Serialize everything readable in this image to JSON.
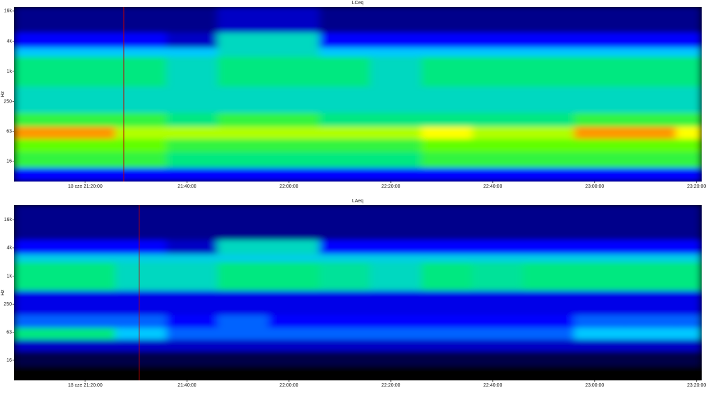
{
  "chart_data": [
    {
      "type": "spectrogram",
      "title": "LCeq",
      "ylabel": "Hz",
      "log_y": true,
      "ylim": [
        6.3,
        19300
      ],
      "yticks": [
        {
          "value": 16000,
          "label": "16k"
        },
        {
          "value": 4000,
          "label": "4k"
        },
        {
          "value": 1000,
          "label": "1k"
        },
        250,
        63,
        16
      ],
      "xlim": [
        1266,
        1401
      ],
      "xticks": [
        {
          "value": 1280,
          "label": "18 cze 21:20:00"
        },
        {
          "value": 1300,
          "label": "21:40:00"
        },
        {
          "value": 1320,
          "label": "22:00:00"
        },
        {
          "value": 1340,
          "label": "22:20:00"
        },
        {
          "value": 1360,
          "label": "22:40:00"
        },
        {
          "value": 1380,
          "label": "23:00:00"
        },
        {
          "value": 1400,
          "label": "23:20:00"
        }
      ],
      "cursor": 1287.6,
      "cursor_color": "#c00000",
      "colorscale": [
        "#000000",
        "#00008b",
        "#0000ff",
        "#00c8ff",
        "#00e880",
        "#60ff00",
        "#ffff00",
        "#ff3000"
      ],
      "times": [
        1266,
        1276,
        1286,
        1296,
        1306,
        1316,
        1326,
        1336,
        1346,
        1356,
        1366,
        1376,
        1386,
        1396
      ],
      "bands": [
        6.3,
        12,
        25,
        45,
        80,
        150,
        500,
        2000,
        3000,
        6000,
        19300
      ],
      "levels": [
        [
          2,
          2,
          2,
          2,
          2,
          2,
          2,
          2,
          2,
          2,
          2,
          2,
          2,
          2
        ],
        [
          4.5,
          4.5,
          4.5,
          4,
          4,
          4,
          4,
          4,
          4.5,
          4.5,
          4.5,
          4.5,
          4.5,
          4.5
        ],
        [
          5,
          5,
          5,
          4.5,
          4.5,
          4.5,
          4.5,
          4.5,
          5,
          5,
          5,
          5,
          5,
          5
        ],
        [
          6.5,
          6.5,
          5.5,
          5.5,
          5.5,
          5.5,
          5.5,
          5.5,
          6,
          5.5,
          5.5,
          6.5,
          6.5,
          6
        ],
        [
          4.5,
          4.5,
          4.5,
          4,
          4.5,
          4.5,
          4,
          4,
          4,
          4,
          4,
          4.5,
          4.5,
          4.5
        ],
        [
          3.5,
          3.5,
          3.5,
          3.5,
          3.5,
          3.5,
          3.5,
          3.5,
          3.5,
          3.5,
          3.5,
          3.5,
          3.5,
          3.5
        ],
        [
          4,
          4,
          4,
          3.5,
          4,
          4,
          4,
          3.5,
          4,
          4,
          4,
          4,
          4,
          4
        ],
        [
          3,
          3,
          3,
          3,
          3.5,
          3.5,
          3,
          3,
          3,
          3,
          3,
          3,
          3,
          3
        ],
        [
          2,
          2,
          2,
          1.5,
          3.5,
          3.5,
          2,
          2,
          2,
          2,
          2,
          2,
          2,
          2
        ],
        [
          1,
          1,
          1,
          1,
          1.5,
          1.5,
          1,
          1,
          1,
          1,
          1,
          1,
          1,
          1
        ]
      ]
    },
    {
      "type": "spectrogram",
      "title": "LAeq",
      "ylabel": "Hz",
      "log_y": true,
      "ylim": [
        5.95,
        32800
      ],
      "yticks": [
        {
          "value": 16000,
          "label": "16k"
        },
        {
          "value": 4000,
          "label": "4k"
        },
        {
          "value": 1000,
          "label": "1k"
        },
        250,
        63,
        16
      ],
      "xlim": [
        1266,
        1401
      ],
      "xticks": [
        {
          "value": 1280,
          "label": "18 cze 21:20:00"
        },
        {
          "value": 1300,
          "label": "21:40:00"
        },
        {
          "value": 1320,
          "label": "22:00:00"
        },
        {
          "value": 1340,
          "label": "22:20:00"
        },
        {
          "value": 1360,
          "label": "22:40:00"
        },
        {
          "value": 1380,
          "label": "23:00:00"
        },
        {
          "value": 1400,
          "label": "23:20:00"
        }
      ],
      "cursor": 1290.6,
      "cursor_color": "#c00000",
      "colorscale": [
        "#000000",
        "#00008b",
        "#0000ff",
        "#00c8ff",
        "#00e880",
        "#60ff00",
        "#ffff00",
        "#ff3000"
      ],
      "times": [
        1266,
        1276,
        1286,
        1296,
        1306,
        1316,
        1326,
        1336,
        1346,
        1356,
        1366,
        1376,
        1386,
        1396
      ],
      "bands": [
        5.95,
        12,
        25,
        45,
        80,
        150,
        500,
        2000,
        3000,
        6000,
        32800
      ],
      "levels": [
        [
          0,
          0,
          0,
          0,
          0,
          0,
          0,
          0,
          0,
          0,
          0,
          0,
          0,
          0
        ],
        [
          0.5,
          0.5,
          0.5,
          0.5,
          0.5,
          0.5,
          0.5,
          0.5,
          0.5,
          0.5,
          0.5,
          0.5,
          0.5,
          0.5
        ],
        [
          1.5,
          1.5,
          1.5,
          1.5,
          1.5,
          1.5,
          1.5,
          1.5,
          1.5,
          1.5,
          1.5,
          1.5,
          1.5,
          1.5
        ],
        [
          4,
          4,
          3,
          2.5,
          2.5,
          2.5,
          2.5,
          2.5,
          2.5,
          2.5,
          2.5,
          3,
          3,
          3
        ],
        [
          2.5,
          2.5,
          2.5,
          2,
          2.5,
          2,
          2,
          2,
          2,
          2,
          2,
          2.5,
          2.5,
          2.5
        ],
        [
          1.8,
          1.8,
          1.8,
          1.8,
          1.8,
          1.8,
          1.8,
          1.8,
          1.8,
          1.8,
          1.8,
          1.8,
          1.8,
          1.8
        ],
        [
          4,
          4,
          3.5,
          3.5,
          4,
          4,
          3.8,
          3.5,
          4,
          3.8,
          4,
          4,
          4,
          4
        ],
        [
          3.2,
          3.2,
          3.2,
          3.2,
          3.2,
          3.2,
          3.2,
          3.2,
          3.2,
          3.2,
          3.2,
          3.2,
          3.2,
          3.2
        ],
        [
          2,
          2,
          2,
          1.5,
          3.5,
          3.5,
          2,
          2,
          2,
          2,
          2,
          2,
          2,
          2
        ],
        [
          1,
          1,
          1,
          1,
          1,
          1,
          1,
          1,
          1,
          1,
          1,
          1,
          1,
          1
        ]
      ]
    }
  ]
}
